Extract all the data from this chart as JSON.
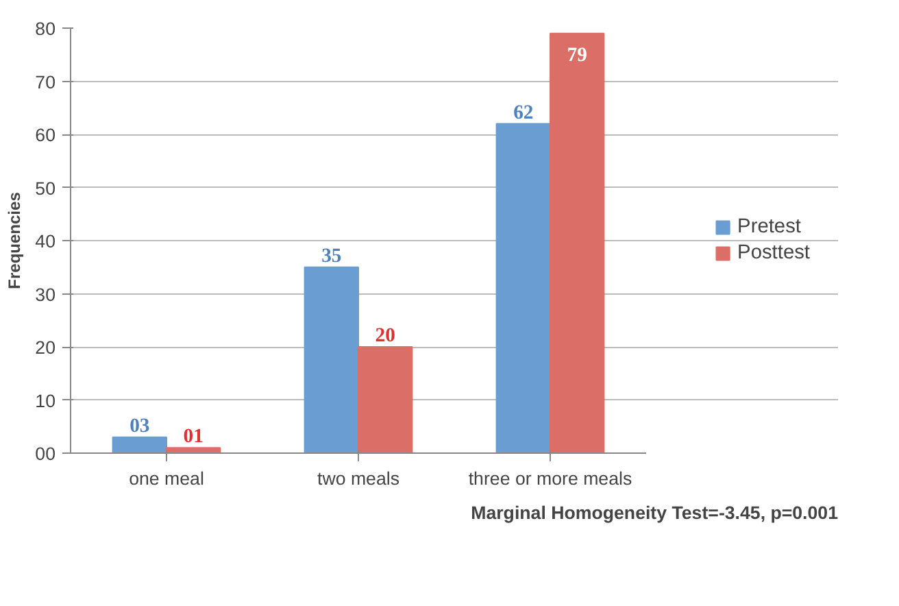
{
  "chart_data": {
    "type": "bar",
    "ylabel": "Frequencies",
    "categories": [
      "one meal",
      "two meals",
      "three or more meals"
    ],
    "series": [
      {
        "name": "Pretest",
        "color": "#6a9dd2",
        "values": [
          3,
          35,
          62
        ],
        "value_labels": [
          "03",
          "35",
          "62"
        ]
      },
      {
        "name": "Posttest",
        "color": "#dc6e68",
        "values": [
          1,
          20,
          79
        ],
        "value_labels": [
          "01",
          "20",
          "79"
        ]
      }
    ],
    "ylim": [
      0,
      80
    ],
    "yticks": [
      {
        "value": 0,
        "label": "00"
      },
      10,
      20,
      30,
      40,
      50,
      60,
      70,
      80
    ],
    "grid": "y",
    "legend": "right",
    "annotations": [
      "Marginal Homogeneity Test=-3.45, p=0.001"
    ]
  }
}
